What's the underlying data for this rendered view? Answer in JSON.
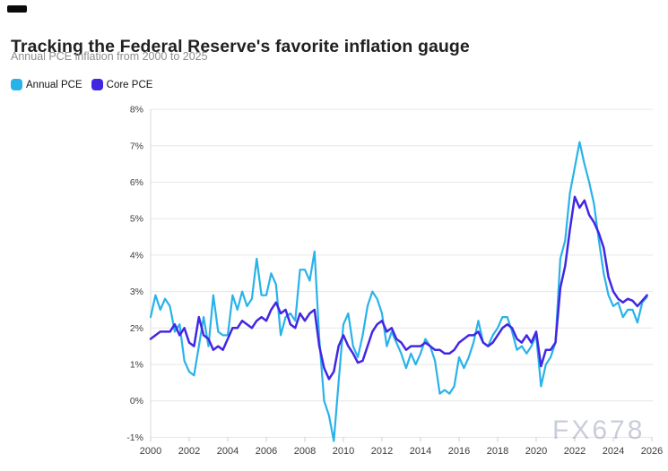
{
  "header": {
    "title": "Tracking the Federal Reserve's favorite inflation gauge",
    "subtitle": "Annual PCE inflation from 2000 to 2025"
  },
  "legend": {
    "items": [
      {
        "label": "Annual PCE",
        "color": "#29b2ea"
      },
      {
        "label": "Core PCE",
        "color": "#4127e3"
      }
    ]
  },
  "watermark": "FX678",
  "chart_data": {
    "type": "line",
    "title": "Tracking the Federal Reserve's favorite inflation gauge",
    "subtitle": "Annual PCE inflation from 2000 to 2025",
    "grid": true,
    "legend_position": "top-left",
    "xlim": [
      2000,
      2026
    ],
    "ylim": [
      -1,
      8
    ],
    "x_start": 2000,
    "x_step": 0.25,
    "x_ticks": [
      2000,
      2002,
      2004,
      2006,
      2008,
      2010,
      2012,
      2014,
      2016,
      2018,
      2020,
      2022,
      2024,
      2026
    ],
    "y_ticks": [
      {
        "value": 8,
        "label": "8%"
      },
      {
        "value": 7,
        "label": "7%"
      },
      {
        "value": 6,
        "label": "6%"
      },
      {
        "value": 5,
        "label": "5%"
      },
      {
        "value": 4,
        "label": "4%"
      },
      {
        "value": 3,
        "label": "3%"
      },
      {
        "value": 2,
        "label": "2%"
      },
      {
        "value": 1,
        "label": "1%"
      },
      {
        "value": 0,
        "label": "0%"
      },
      {
        "value": -1,
        "label": "-1%"
      }
    ],
    "series": [
      {
        "name": "Annual PCE",
        "color": "#29b2ea",
        "values": [
          2.3,
          2.9,
          2.5,
          2.8,
          2.6,
          1.9,
          2.1,
          1.1,
          0.8,
          0.7,
          1.5,
          2.3,
          1.5,
          2.9,
          1.9,
          1.8,
          1.8,
          2.9,
          2.5,
          3.0,
          2.6,
          2.8,
          3.9,
          2.9,
          2.9,
          3.5,
          3.2,
          1.8,
          2.3,
          2.4,
          2.2,
          3.6,
          3.6,
          3.3,
          4.1,
          1.7,
          0.0,
          -0.4,
          -1.1,
          0.5,
          2.1,
          2.4,
          1.5,
          1.2,
          1.8,
          2.6,
          3.0,
          2.8,
          2.4,
          1.5,
          1.9,
          1.6,
          1.3,
          0.9,
          1.3,
          1.0,
          1.3,
          1.7,
          1.5,
          1.1,
          0.2,
          0.3,
          0.2,
          0.4,
          1.2,
          0.9,
          1.2,
          1.6,
          2.2,
          1.6,
          1.5,
          1.8,
          2.0,
          2.3,
          2.3,
          1.9,
          1.4,
          1.5,
          1.3,
          1.5,
          1.8,
          0.4,
          1.0,
          1.2,
          1.6,
          3.9,
          4.4,
          5.7,
          6.4,
          7.1,
          6.5,
          6.0,
          5.4,
          4.4,
          3.5,
          2.9,
          2.6,
          2.7,
          2.3,
          2.5,
          2.5,
          2.15,
          2.7,
          2.85
        ]
      },
      {
        "name": "Core PCE",
        "color": "#4127e3",
        "values": [
          1.7,
          1.8,
          1.9,
          1.9,
          1.9,
          2.1,
          1.8,
          2.0,
          1.6,
          1.5,
          2.3,
          1.8,
          1.7,
          1.4,
          1.5,
          1.4,
          1.7,
          2.0,
          2.0,
          2.2,
          2.1,
          2.0,
          2.2,
          2.3,
          2.2,
          2.5,
          2.7,
          2.4,
          2.5,
          2.1,
          2.0,
          2.4,
          2.2,
          2.4,
          2.5,
          1.5,
          0.9,
          0.6,
          0.8,
          1.5,
          1.8,
          1.5,
          1.3,
          1.05,
          1.1,
          1.5,
          1.9,
          2.1,
          2.2,
          1.9,
          2.0,
          1.7,
          1.6,
          1.4,
          1.5,
          1.5,
          1.5,
          1.6,
          1.5,
          1.4,
          1.4,
          1.3,
          1.3,
          1.4,
          1.6,
          1.7,
          1.8,
          1.8,
          1.9,
          1.6,
          1.5,
          1.6,
          1.8,
          2.0,
          2.1,
          2.0,
          1.7,
          1.6,
          1.8,
          1.6,
          1.9,
          0.95,
          1.4,
          1.4,
          1.6,
          3.1,
          3.7,
          4.7,
          5.6,
          5.3,
          5.5,
          5.1,
          4.9,
          4.6,
          4.2,
          3.4,
          3.0,
          2.8,
          2.7,
          2.8,
          2.75,
          2.6,
          2.75,
          2.9
        ]
      }
    ]
  }
}
